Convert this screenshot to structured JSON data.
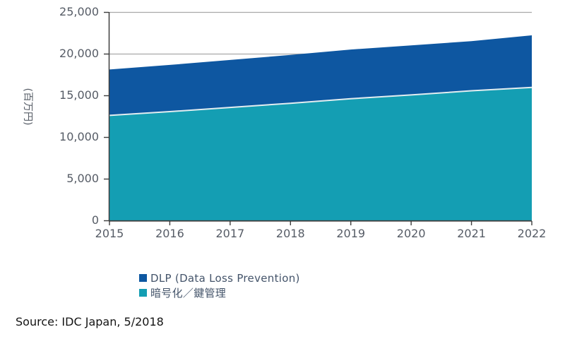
{
  "chart_data": {
    "type": "area",
    "stacked": true,
    "x": [
      2015,
      2016,
      2017,
      2018,
      2019,
      2020,
      2021,
      2022
    ],
    "series": [
      {
        "name": "DLP (Data Loss Prevention)",
        "color": "#0e57a1",
        "values": [
          5500,
          5600,
          5700,
          5800,
          5900,
          5950,
          5950,
          6250
        ]
      },
      {
        "name": "暗号化／鍵管理",
        "color": "#149eb3",
        "values": [
          12600,
          13050,
          13550,
          14050,
          14600,
          15050,
          15550,
          15950
        ]
      }
    ],
    "stack_bottom_series": 1,
    "totals": [
      18100,
      18650,
      19250,
      19850,
      20500,
      21000,
      21500,
      22200
    ],
    "title": "",
    "xlabel": "",
    "ylabel": "(百万円)",
    "ylim": [
      0,
      25000
    ],
    "y_ticks": [
      {
        "value": 0,
        "label": "0"
      },
      {
        "value": 5000,
        "label": "5,000"
      },
      {
        "value": 10000,
        "label": "10,000"
      },
      {
        "value": 15000,
        "label": "15,000"
      },
      {
        "value": 20000,
        "label": "20,000"
      },
      {
        "value": 25000,
        "label": "25,000"
      }
    ],
    "grid": "horizontal",
    "legend_position": "bottom-left"
  },
  "source": {
    "text": "Source: IDC Japan, 5/2018"
  },
  "colors": {
    "gridline": "#a8a8a8",
    "axis": "#3d3d3d",
    "tick_text": "#565c66",
    "legend_text": "#44546a",
    "area_divider": "#e3edf0",
    "background": "#ffffff"
  }
}
